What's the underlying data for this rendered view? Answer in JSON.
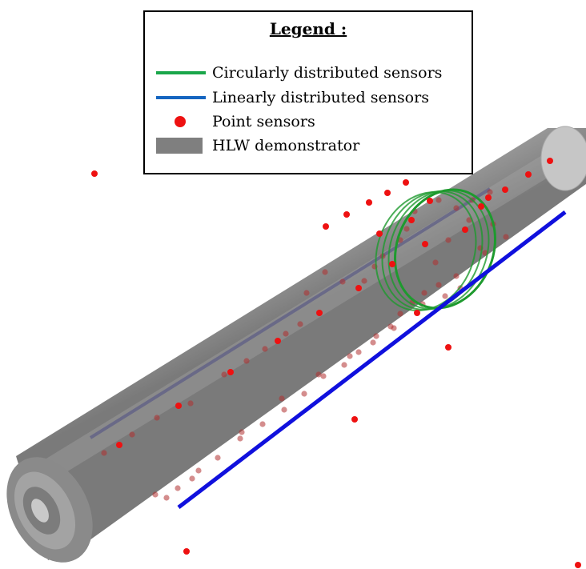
{
  "legend": {
    "title": "Legend :",
    "items": [
      {
        "label": "Circularly distributed sensors",
        "kind": "line",
        "color": "#1aa64a"
      },
      {
        "label": "Linearly distributed sensors",
        "kind": "line",
        "color": "#1565c0"
      },
      {
        "label": "Point sensors",
        "kind": "dot",
        "color": "#ee1111"
      },
      {
        "label": "HLW demonstrator",
        "kind": "rect",
        "color": "#7f7f7f"
      }
    ]
  },
  "colors": {
    "tube": "#9a9a9a",
    "tube_dark": "#7d7d7d",
    "tube_light": "#b4b4b4",
    "circular_sensor": "#1e9a2e",
    "linear_sensor": "#1010dd",
    "point_sensor": "#ee1111",
    "inner_rod": "#5e5e86"
  },
  "counts": {
    "circular_rings": 4,
    "point_sensors_visible": 28,
    "point_sensors_behind_tube": 58
  }
}
